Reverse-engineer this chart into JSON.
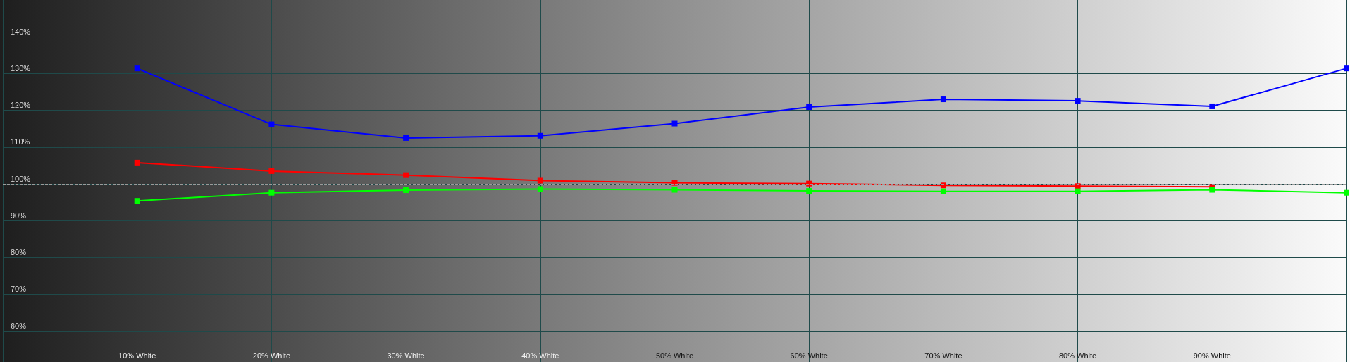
{
  "chart_data": {
    "type": "line",
    "x": [
      10,
      20,
      30,
      40,
      50,
      60,
      70,
      80,
      90,
      100
    ],
    "series": [
      {
        "color": "#0000ff",
        "values": [
          131.4,
          116.2,
          112.5,
          113.1,
          116.4,
          120.9,
          123.0,
          122.6,
          121.1,
          131.4
        ]
      },
      {
        "color": "#ff0000",
        "values": [
          105.8,
          103.5,
          102.4,
          100.9,
          100.3,
          100.1,
          99.6,
          99.4,
          99.2,
          null
        ]
      },
      {
        "color": "#00ff00",
        "values": [
          95.4,
          97.6,
          98.3,
          98.6,
          98.4,
          98.1,
          98.0,
          98.0,
          98.4,
          97.6
        ]
      }
    ],
    "xlim": [
      0,
      100
    ],
    "xticks": [
      {
        "value": 10,
        "label": "10% White"
      },
      {
        "value": 20,
        "label": "20% White"
      },
      {
        "value": 30,
        "label": "30% White"
      },
      {
        "value": 40,
        "label": "40% White"
      },
      {
        "value": 50,
        "label": "50% White"
      },
      {
        "value": 60,
        "label": "60% White"
      },
      {
        "value": 70,
        "label": "70% White"
      },
      {
        "value": 80,
        "label": "80% White"
      },
      {
        "value": 90,
        "label": "90% White"
      }
    ],
    "ylim": [
      51.6,
      150
    ],
    "yticks": [
      {
        "value": 60,
        "label": "60%"
      },
      {
        "value": 70,
        "label": "70%"
      },
      {
        "value": 80,
        "label": "80%"
      },
      {
        "value": 90,
        "label": "90%"
      },
      {
        "value": 100,
        "label": "100%"
      },
      {
        "value": 110,
        "label": "110%"
      },
      {
        "value": 120,
        "label": "120%"
      },
      {
        "value": 130,
        "label": "130%"
      },
      {
        "value": 140,
        "label": "140%"
      }
    ],
    "ref_lines": [
      {
        "axis": "y",
        "value": 100,
        "line_style": "dashed"
      }
    ],
    "grid": true,
    "marker": "square",
    "line_style": "solid"
  }
}
